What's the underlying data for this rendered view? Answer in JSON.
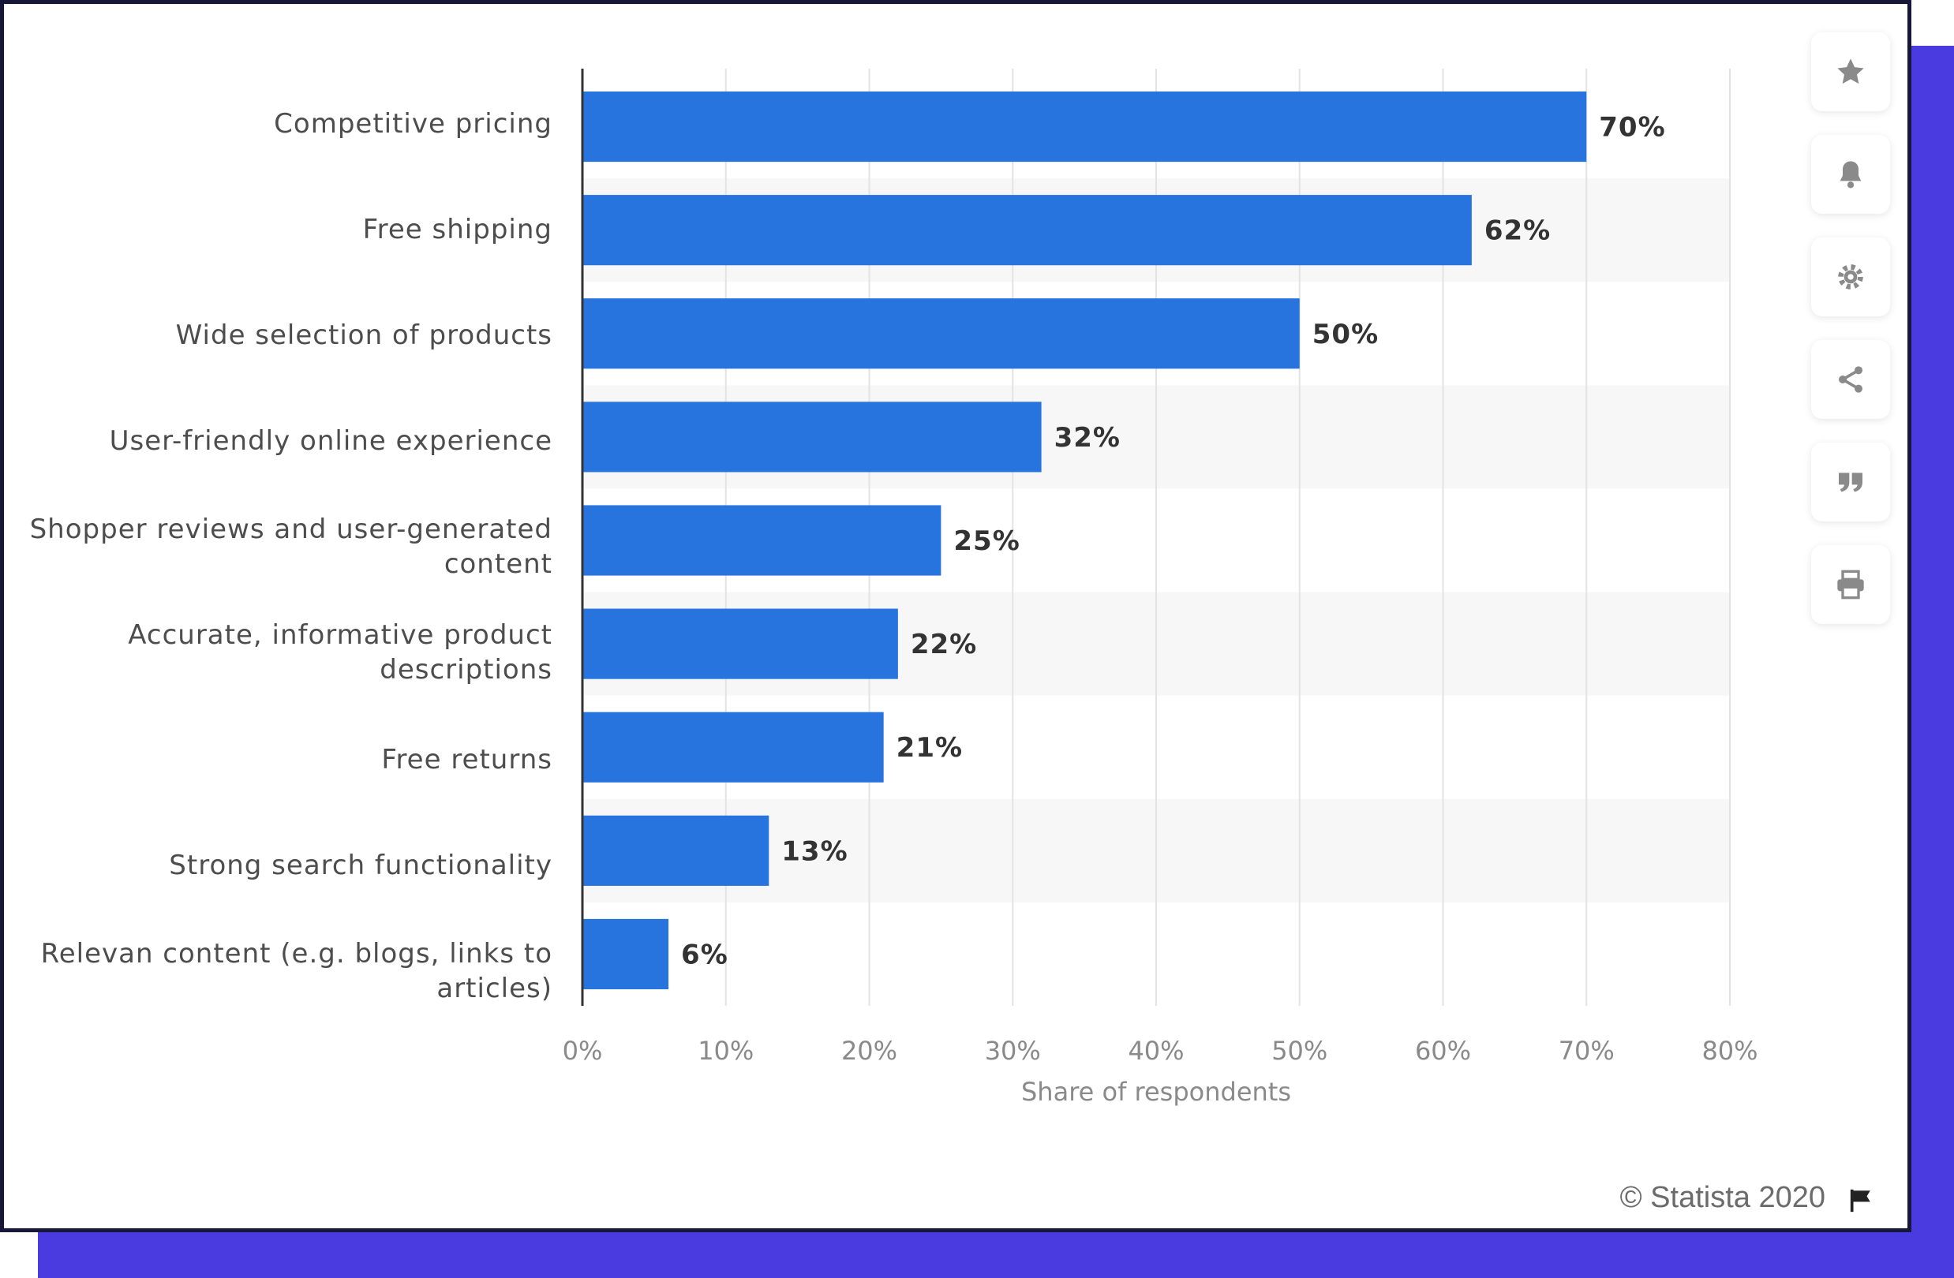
{
  "chart_data": {
    "type": "bar",
    "orientation": "horizontal",
    "categories": [
      "Competitive pricing",
      "Free shipping",
      "Wide selection of products",
      "User-friendly online experience",
      "Shopper reviews and user-generated content",
      "Accurate, informative product descriptions",
      "Free returns",
      "Strong search functionality",
      "Relevan content (e.g. blogs, links to articles)"
    ],
    "values": [
      70,
      62,
      50,
      32,
      25,
      22,
      21,
      13,
      6
    ],
    "data_labels": [
      "70%",
      "62%",
      "50%",
      "32%",
      "25%",
      "22%",
      "21%",
      "13%",
      "6%"
    ],
    "xlabel": "Share of respondents",
    "ylabel": "",
    "xlim": [
      0,
      80
    ],
    "xticks": [
      0,
      10,
      20,
      30,
      40,
      50,
      60,
      70,
      80
    ],
    "xtick_labels": [
      "0%",
      "10%",
      "20%",
      "30%",
      "40%",
      "50%",
      "60%",
      "70%",
      "80%"
    ],
    "grid": true,
    "legend": "none",
    "bar_color": "#2874de"
  },
  "labels": {
    "cat0": [
      "Competitive pricing"
    ],
    "cat1": [
      "Free shipping"
    ],
    "cat2": [
      "Wide selection of products"
    ],
    "cat3": [
      "User-friendly online experience"
    ],
    "cat4": [
      "Shopper reviews and user-generated",
      "content"
    ],
    "cat5": [
      "Accurate, informative product",
      "descriptions"
    ],
    "cat6": [
      "Free returns"
    ],
    "cat7": [
      "Strong search functionality"
    ],
    "cat8": [
      "Relevan content (e.g. blogs, links to",
      "articles)"
    ]
  },
  "toolbar": {
    "icons": [
      "star-icon",
      "bell-icon",
      "gear-icon",
      "share-icon",
      "quote-icon",
      "print-icon"
    ]
  },
  "footer": {
    "credit": "© Statista 2020"
  },
  "colors": {
    "accent": "#2874de",
    "frame": "#17173a",
    "shadow": "#4a3be0",
    "band": "#f7f7f7"
  }
}
